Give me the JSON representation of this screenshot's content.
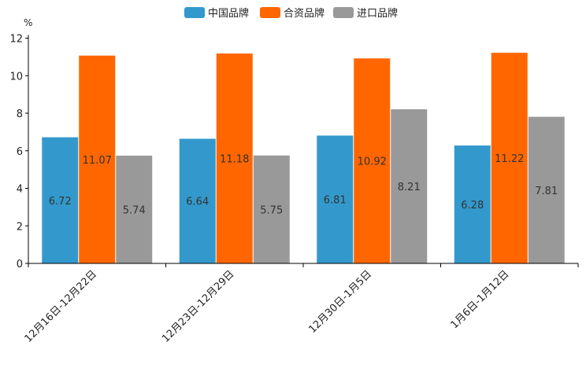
{
  "chart_data": {
    "type": "bar",
    "title": "",
    "xlabel": "",
    "ylabel": "%",
    "ylim": [
      0,
      12
    ],
    "yticks": [
      0,
      2,
      4,
      6,
      8,
      10,
      12
    ],
    "categories": [
      "12月16日-12月22日",
      "12月23日-12月29日",
      "12月30日-1月5日",
      "1月6日-1月12日"
    ],
    "series": [
      {
        "name": "中国品牌",
        "color": "#3399cc",
        "values": [
          6.72,
          6.64,
          6.81,
          6.28
        ]
      },
      {
        "name": "合资品牌",
        "color": "#ff6600",
        "values": [
          11.07,
          11.18,
          10.92,
          11.22
        ]
      },
      {
        "name": "进口品牌",
        "color": "#999999",
        "values": [
          5.74,
          5.75,
          8.21,
          7.81
        ]
      }
    ],
    "legend_position": "top-center",
    "grid": false
  }
}
